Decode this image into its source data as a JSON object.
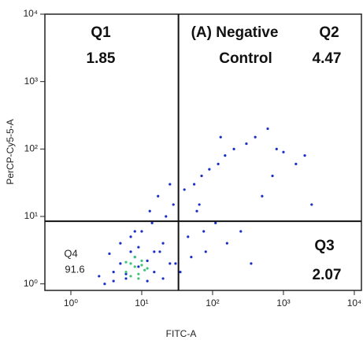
{
  "chart_data": {
    "type": "scatter",
    "x_label": "FITC-A",
    "y_label": "PerCP-Cy5-5-A",
    "log_x": true,
    "log_y": true,
    "xlim": [
      0.43,
      12600
    ],
    "ylim": [
      0.8,
      10000
    ],
    "xticks": [
      {
        "value": 1,
        "label": "10⁰"
      },
      {
        "value": 10,
        "label": "10¹"
      },
      {
        "value": 100,
        "label": "10²"
      },
      {
        "value": 1000,
        "label": "10³"
      },
      {
        "value": 10000,
        "label": "10⁴"
      }
    ],
    "yticks": [
      {
        "value": 1,
        "label": "10⁰"
      },
      {
        "value": 10,
        "label": "10¹"
      },
      {
        "value": 100,
        "label": "10²"
      },
      {
        "value": 1000,
        "label": "10³"
      },
      {
        "value": 10000,
        "label": "10⁴"
      }
    ],
    "gates": {
      "x": 33,
      "y": 8.5
    },
    "annotation": [
      "(A) Negative",
      "Control"
    ],
    "quadrants": [
      {
        "name": "Q1",
        "value": 1.85
      },
      {
        "name": "Q2",
        "value": 4.47
      },
      {
        "name": "Q3",
        "value": 2.07
      },
      {
        "name": "Q4",
        "value": 91.6
      }
    ],
    "series": [
      {
        "color": "#1a2fc4",
        "x": [
          3,
          4,
          5,
          6,
          7,
          8,
          9,
          12,
          15,
          18,
          20,
          25,
          2.5,
          3.5,
          5,
          7,
          10,
          14,
          22,
          28,
          4,
          6,
          9,
          13,
          17,
          40,
          55,
          70,
          90,
          120,
          150,
          200,
          300,
          400,
          600,
          800,
          1000,
          1500,
          2000,
          45,
          60,
          80,
          110,
          160,
          250,
          350,
          500,
          35,
          50,
          75,
          15,
          20,
          30,
          12,
          8,
          25,
          65,
          130,
          700,
          2500
        ],
        "y": [
          1,
          1.5,
          2,
          1.2,
          3,
          2.5,
          1.8,
          2.2,
          1.5,
          3,
          4,
          2,
          1.3,
          2.8,
          4,
          5,
          6,
          8,
          10,
          15,
          1.1,
          1.4,
          3.5,
          12,
          20,
          25,
          30,
          40,
          50,
          60,
          80,
          100,
          120,
          150,
          200,
          100,
          90,
          60,
          80,
          5,
          12,
          3,
          8,
          4,
          6,
          2,
          20,
          1.5,
          2.5,
          6,
          3,
          1.2,
          2,
          1.1,
          6,
          30,
          15,
          150,
          40,
          15
        ]
      },
      {
        "color": "#3fc27a",
        "x": [
          6,
          7,
          8,
          9,
          10,
          11,
          8,
          9,
          7,
          10,
          12,
          6
        ],
        "y": [
          1.5,
          2,
          1.8,
          1.4,
          2.2,
          1.6,
          2.5,
          1.2,
          1.3,
          1.9,
          1.7,
          2.1
        ]
      }
    ]
  }
}
